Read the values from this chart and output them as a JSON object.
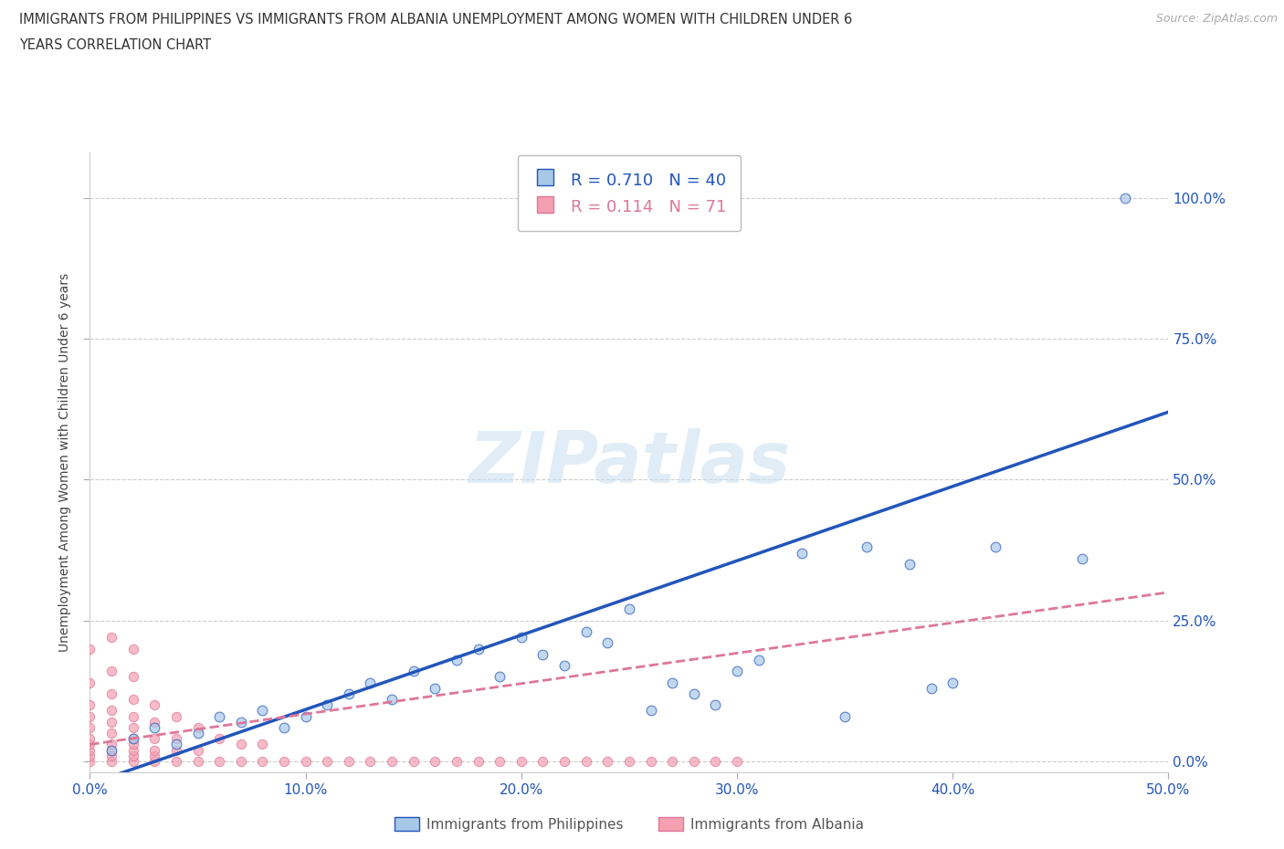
{
  "title_line1": "IMMIGRANTS FROM PHILIPPINES VS IMMIGRANTS FROM ALBANIA UNEMPLOYMENT AMONG WOMEN WITH CHILDREN UNDER 6",
  "title_line2": "YEARS CORRELATION CHART",
  "source": "Source: ZipAtlas.com",
  "xlim": [
    0.0,
    0.5
  ],
  "ylim": [
    -0.02,
    1.08
  ],
  "ylabel": "Unemployment Among Women with Children Under 6 years",
  "watermark": "ZIPatlas",
  "philippines_R": 0.71,
  "philippines_N": 40,
  "albania_R": 0.114,
  "albania_N": 71,
  "philippines_color": "#a8c8e8",
  "albania_color": "#f4a0b0",
  "philippines_line_color": "#2255bb",
  "albania_line_color": "#dd7799",
  "philippines_x": [
    0.01,
    0.02,
    0.03,
    0.04,
    0.05,
    0.06,
    0.07,
    0.08,
    0.09,
    0.1,
    0.11,
    0.12,
    0.13,
    0.14,
    0.15,
    0.16,
    0.17,
    0.18,
    0.19,
    0.2,
    0.21,
    0.22,
    0.23,
    0.24,
    0.25,
    0.26,
    0.27,
    0.28,
    0.29,
    0.3,
    0.31,
    0.33,
    0.35,
    0.36,
    0.38,
    0.39,
    0.4,
    0.42,
    0.46,
    0.48
  ],
  "philippines_y": [
    0.02,
    0.04,
    0.06,
    0.03,
    0.05,
    0.08,
    0.07,
    0.09,
    0.06,
    0.08,
    0.1,
    0.12,
    0.14,
    0.11,
    0.16,
    0.13,
    0.18,
    0.2,
    0.15,
    0.22,
    0.19,
    0.17,
    0.23,
    0.21,
    0.27,
    0.09,
    0.14,
    0.12,
    0.1,
    0.16,
    0.18,
    0.37,
    0.08,
    0.38,
    0.35,
    0.13,
    0.14,
    0.38,
    0.36,
    1.0
  ],
  "albania_x": [
    0.0,
    0.0,
    0.0,
    0.0,
    0.0,
    0.0,
    0.0,
    0.0,
    0.0,
    0.0,
    0.01,
    0.01,
    0.01,
    0.01,
    0.01,
    0.01,
    0.01,
    0.01,
    0.01,
    0.01,
    0.02,
    0.02,
    0.02,
    0.02,
    0.02,
    0.02,
    0.02,
    0.02,
    0.02,
    0.02,
    0.03,
    0.03,
    0.03,
    0.03,
    0.03,
    0.03,
    0.04,
    0.04,
    0.04,
    0.04,
    0.05,
    0.05,
    0.05,
    0.06,
    0.06,
    0.07,
    0.07,
    0.08,
    0.08,
    0.09,
    0.1,
    0.11,
    0.12,
    0.13,
    0.14,
    0.15,
    0.16,
    0.17,
    0.18,
    0.19,
    0.2,
    0.21,
    0.22,
    0.23,
    0.24,
    0.25,
    0.26,
    0.27,
    0.28,
    0.29,
    0.3
  ],
  "albania_y": [
    0.0,
    0.01,
    0.02,
    0.03,
    0.04,
    0.06,
    0.08,
    0.1,
    0.14,
    0.2,
    0.0,
    0.01,
    0.02,
    0.03,
    0.05,
    0.07,
    0.09,
    0.12,
    0.16,
    0.22,
    0.0,
    0.01,
    0.02,
    0.03,
    0.04,
    0.06,
    0.08,
    0.11,
    0.15,
    0.2,
    0.0,
    0.01,
    0.02,
    0.04,
    0.07,
    0.1,
    0.0,
    0.02,
    0.04,
    0.08,
    0.0,
    0.02,
    0.06,
    0.0,
    0.04,
    0.0,
    0.03,
    0.0,
    0.03,
    0.0,
    0.0,
    0.0,
    0.0,
    0.0,
    0.0,
    0.0,
    0.0,
    0.0,
    0.0,
    0.0,
    0.0,
    0.0,
    0.0,
    0.0,
    0.0,
    0.0,
    0.0,
    0.0,
    0.0,
    0.0,
    0.0
  ],
  "phil_line_x0": 0.0,
  "phil_line_y0": -0.04,
  "phil_line_x1": 0.5,
  "phil_line_y1": 0.62,
  "alba_line_x0": 0.0,
  "alba_line_y0": 0.03,
  "alba_line_x1": 0.5,
  "alba_line_y1": 0.3,
  "legend_label_philippines": "Immigrants from Philippines",
  "legend_label_albania": "Immigrants from Albania",
  "background_color": "#ffffff",
  "grid_color": "#cccccc"
}
